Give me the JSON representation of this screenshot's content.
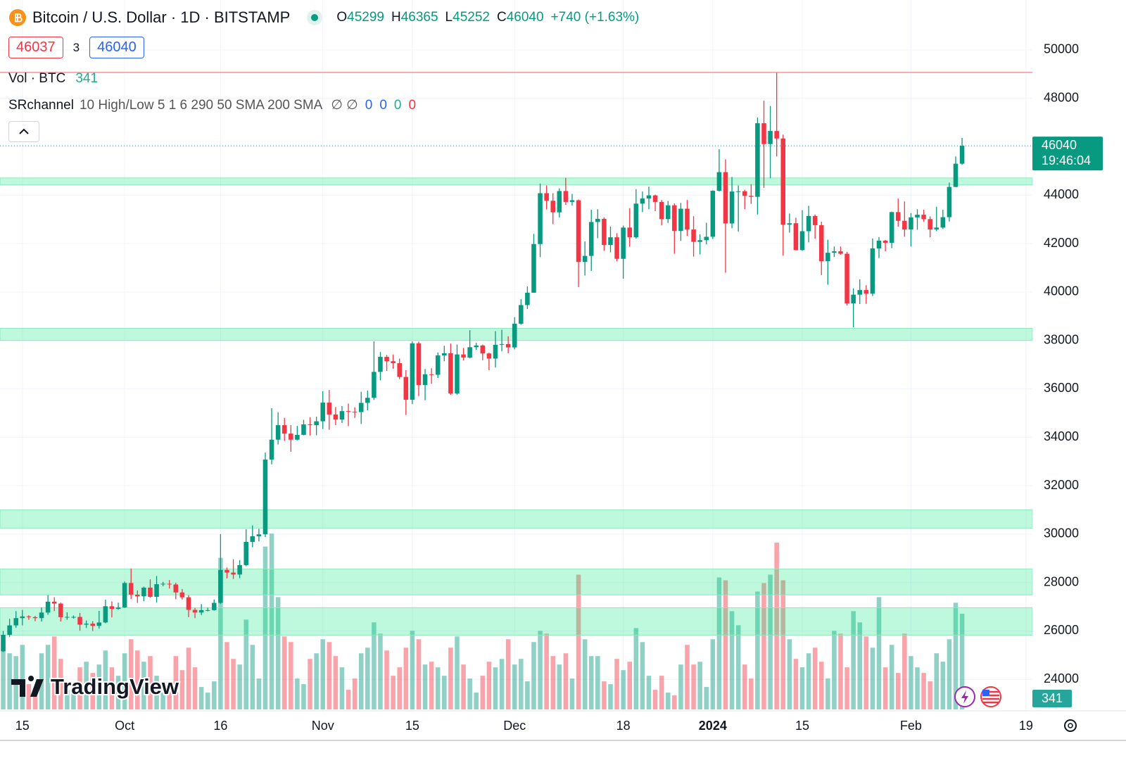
{
  "chart_data": {
    "type": "candlestick",
    "title": "Bitcoin / U.S. Dollar · 1D · BITSTAMP",
    "ohlc": {
      "labels": [
        "O",
        "H",
        "L",
        "C"
      ],
      "values": [
        45299,
        46365,
        45252,
        46040
      ]
    },
    "change_label": "+740 (+1.63%)",
    "bid": 46037,
    "spread": 3,
    "ask": 46040,
    "volume_label": "Vol · BTC",
    "indicator": {
      "name": "SRchannel",
      "params": "10 High/Low 5 1 6 290 50 SMA 200 SMA",
      "symbols": "∅ ∅",
      "values": [
        0,
        0,
        0,
        0
      ],
      "value_colors": [
        "#2962ff",
        "#2962ff",
        "#22ab94",
        "#f23645"
      ]
    },
    "last_price": 46040,
    "countdown": "19:46:04",
    "brand": "TradingView",
    "colors": {
      "up": "#089981",
      "down": "#f23645",
      "volume_up": "rgba(8,153,129,0.45)",
      "volume_down": "rgba(242,54,69,0.45)",
      "zone": "rgba(0,230,118,0.25)",
      "zone_edge": "#8de8bd",
      "resistance": "#f7a9ae"
    },
    "ylim": [
      22700,
      52060
    ],
    "yticks": [
      24000,
      26000,
      28000,
      30000,
      32000,
      34000,
      36000,
      38000,
      40000,
      42000,
      44000,
      46000,
      48000,
      50000
    ],
    "xlim": [
      -0.5,
      161
    ],
    "xticks": [
      {
        "value": 3,
        "label": "15"
      },
      {
        "value": 19,
        "label": "Oct"
      },
      {
        "value": 34,
        "label": "16"
      },
      {
        "value": 50,
        "label": "Nov"
      },
      {
        "value": 64,
        "label": "15"
      },
      {
        "value": 80,
        "label": "Dec"
      },
      {
        "value": 97,
        "label": "18"
      },
      {
        "value": 111,
        "label": "2024"
      },
      {
        "value": 125,
        "label": "15"
      },
      {
        "value": 142,
        "label": "Feb"
      },
      {
        "value": 160,
        "label": "19"
      }
    ],
    "vlim": [
      0,
      1000
    ],
    "grid": true,
    "zones": [
      {
        "low": 44420,
        "high": 44710
      },
      {
        "low": 38000,
        "high": 38500
      },
      {
        "low": 30250,
        "high": 31000
      },
      {
        "low": 27490,
        "high": 28560
      },
      {
        "low": 25830,
        "high": 26960
      }
    ],
    "resistance": 49070,
    "open": [
      25160,
      25840,
      26230,
      26530,
      26600,
      26570,
      26530,
      26760,
      27210,
      27130,
      26570,
      26580,
      26580,
      26260,
      26300,
      26210,
      26350,
      27020,
      26910,
      26970,
      27980,
      27500,
      27430,
      27790,
      27410,
      27930,
      27950,
      27920,
      27590,
      27390,
      26870,
      26760,
      26860,
      26860,
      27160,
      28520,
      28410,
      28330,
      28720,
      29680,
      29910,
      29990,
      33080,
      33900,
      34500,
      34150,
      33900,
      34100,
      34530,
      34500,
      34660,
      35430,
      34940,
      34730,
      35080,
      35050,
      35040,
      35420,
      35630,
      36700,
      37320,
      37140,
      37060,
      36490,
      35550,
      37880,
      36160,
      36600,
      36580,
      37380,
      37470,
      35810,
      37420,
      37290,
      37720,
      37790,
      37460,
      37250,
      37820,
      37850,
      37710,
      38690,
      39460,
      39970,
      41980,
      44080,
      43770,
      43290,
      44170,
      43720,
      43790,
      41240,
      41490,
      42890,
      43020,
      41940,
      42260,
      41370,
      42660,
      42260,
      43650,
      43860,
      43990,
      43720,
      43010,
      43580,
      42520,
      43440,
      42580,
      42070,
      42140,
      42280,
      44180,
      44950,
      42830,
      44150,
      44160,
      43970,
      43930,
      46970,
      46110,
      46650,
      46340,
      42780,
      42840,
      41730,
      42510,
      43140,
      42760,
      41270,
      41620,
      41680,
      41580,
      39530,
      39890,
      40080,
      39930,
      41800,
      42120,
      42030,
      43300,
      42940,
      42580,
      43080,
      43190,
      43010,
      42580,
      42660,
      43090,
      44340,
      45299
    ],
    "high": [
      26000,
      26500,
      26820,
      26870,
      26650,
      26620,
      26970,
      27480,
      27390,
      27170,
      26770,
      26640,
      26740,
      26430,
      26400,
      26830,
      27290,
      27220,
      27170,
      28040,
      28580,
      27670,
      27830,
      28130,
      28270,
      28030,
      28100,
      27990,
      27730,
      27480,
      26950,
      27110,
      26960,
      27300,
      30000,
      28620,
      28960,
      28930,
      30200,
      30360,
      30220,
      33370,
      35200,
      35030,
      34800,
      34500,
      34470,
      34720,
      34830,
      34850,
      35900,
      35950,
      35250,
      35290,
      35390,
      35240,
      35880,
      35930,
      37960,
      37520,
      37400,
      37420,
      37250,
      36770,
      37960,
      37950,
      36820,
      36850,
      37500,
      37780,
      37870,
      37830,
      37690,
      38420,
      37900,
      37830,
      37500,
      38380,
      38440,
      38170,
      38960,
      39700,
      40230,
      42400,
      44480,
      44400,
      44080,
      44280,
      44710,
      44050,
      43820,
      42090,
      43400,
      43420,
      43080,
      42700,
      42430,
      42740,
      43460,
      44250,
      44150,
      44350,
      44020,
      43800,
      43760,
      43660,
      43680,
      43800,
      43130,
      42380,
      42860,
      44200,
      45900,
      45480,
      44750,
      44400,
      44220,
      44450,
      47200,
      47900,
      47680,
      49050,
      46500,
      43240,
      43070,
      43380,
      43560,
      43200,
      42900,
      42160,
      41880,
      41880,
      41660,
      40150,
      40520,
      40280,
      42210,
      42270,
      42150,
      43320,
      43860,
      43740,
      43260,
      43420,
      43400,
      43120,
      43520,
      43400,
      44520,
      45600,
      46365
    ],
    "low": [
      25130,
      25760,
      26130,
      26230,
      26460,
      26400,
      26390,
      26670,
      26820,
      26390,
      26460,
      26510,
      26010,
      26120,
      26000,
      26090,
      26320,
      26560,
      26880,
      26950,
      27320,
      27160,
      27230,
      27370,
      27170,
      27850,
      27750,
      27310,
      27300,
      26570,
      26530,
      26660,
      26810,
      26840,
      27120,
      28170,
      28150,
      28180,
      28670,
      29460,
      29700,
      29880,
      32880,
      33700,
      33850,
      33400,
      33870,
      34080,
      34070,
      34080,
      34340,
      34310,
      34500,
      34590,
      34460,
      34800,
      34550,
      35110,
      35540,
      36350,
      36740,
      36830,
      36400,
      34920,
      35370,
      35700,
      35530,
      36210,
      36450,
      37140,
      35750,
      35760,
      37170,
      37260,
      37610,
      37180,
      36770,
      36880,
      37550,
      37470,
      37630,
      38650,
      39300,
      39970,
      41440,
      43410,
      42800,
      43080,
      43600,
      43570,
      40200,
      40680,
      40870,
      42220,
      41700,
      41640,
      41270,
      40550,
      41870,
      42200,
      43300,
      43420,
      43340,
      42750,
      42850,
      41580,
      42110,
      42320,
      41460,
      41550,
      41970,
      42190,
      44150,
      40800,
      42630,
      42500,
      43420,
      43640,
      43200,
      44300,
      44700,
      45600,
      41500,
      42450,
      41720,
      41700,
      42050,
      42200,
      40700,
      40300,
      41450,
      41540,
      39440,
      38540,
      39500,
      39510,
      39830,
      41400,
      41680,
      41810,
      42700,
      42280,
      41880,
      42570,
      42900,
      42260,
      42510,
      42600,
      42910,
      44330,
      45252
    ],
    "close": [
      25840,
      26230,
      26530,
      26600,
      26570,
      26530,
      26760,
      27210,
      27130,
      26570,
      26580,
      26580,
      26260,
      26300,
      26210,
      26350,
      27020,
      26910,
      26970,
      27980,
      27500,
      27430,
      27790,
      27410,
      27930,
      27950,
      27920,
      27590,
      27390,
      26870,
      26760,
      26860,
      26860,
      27160,
      28520,
      28410,
      28330,
      28720,
      29680,
      29910,
      29990,
      33080,
      33900,
      34500,
      34150,
      33900,
      34100,
      34530,
      34500,
      34660,
      35430,
      34940,
      34730,
      35080,
      35050,
      35040,
      35420,
      35630,
      36700,
      37320,
      37140,
      37060,
      36490,
      35550,
      37880,
      36160,
      36600,
      36580,
      37380,
      37470,
      35810,
      37420,
      37290,
      37720,
      37790,
      37460,
      37250,
      37820,
      37850,
      37710,
      38690,
      39460,
      39970,
      41980,
      44080,
      43770,
      43290,
      44170,
      43720,
      43790,
      41240,
      41490,
      42890,
      43020,
      41940,
      42260,
      41370,
      42660,
      42260,
      43650,
      43860,
      43990,
      43720,
      43010,
      43580,
      42520,
      43440,
      42580,
      42070,
      42140,
      42280,
      44180,
      44950,
      42830,
      44150,
      44160,
      43970,
      43930,
      46970,
      46110,
      46650,
      46340,
      42780,
      42840,
      41730,
      42510,
      43140,
      42760,
      41270,
      41620,
      41680,
      41580,
      39530,
      39890,
      40080,
      39930,
      41800,
      42120,
      42030,
      43300,
      42940,
      42580,
      43080,
      43190,
      43010,
      42580,
      42660,
      43090,
      44340,
      45299,
      46040
    ],
    "volume": [
      250,
      200,
      190,
      230,
      90,
      60,
      200,
      230,
      260,
      180,
      70,
      60,
      150,
      170,
      130,
      160,
      210,
      150,
      120,
      200,
      250,
      210,
      170,
      190,
      120,
      60,
      70,
      190,
      140,
      220,
      150,
      80,
      60,
      100,
      540,
      240,
      180,
      160,
      320,
      230,
      110,
      580,
      626,
      400,
      260,
      240,
      110,
      90,
      180,
      200,
      250,
      240,
      190,
      150,
      70,
      110,
      200,
      220,
      310,
      270,
      210,
      120,
      150,
      220,
      280,
      250,
      160,
      170,
      150,
      120,
      220,
      260,
      160,
      110,
      60,
      120,
      170,
      150,
      180,
      250,
      160,
      180,
      100,
      240,
      280,
      270,
      190,
      160,
      200,
      110,
      480,
      250,
      190,
      190,
      100,
      90,
      180,
      140,
      170,
      290,
      240,
      120,
      70,
      120,
      60,
      50,
      160,
      230,
      160,
      170,
      80,
      250,
      470,
      460,
      350,
      300,
      160,
      110,
      420,
      450,
      480,
      594,
      460,
      250,
      180,
      150,
      200,
      220,
      170,
      110,
      280,
      270,
      150,
      350,
      310,
      260,
      220,
      400,
      150,
      230,
      130,
      270,
      190,
      150,
      130,
      100,
      200,
      170,
      250,
      380,
      341
    ]
  }
}
